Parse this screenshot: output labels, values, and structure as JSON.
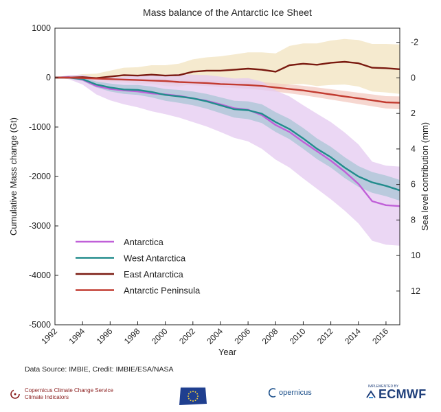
{
  "chart_data": {
    "type": "line",
    "title": "Mass balance of the Antarctic Ice Sheet",
    "xlabel": "Year",
    "ylabel": "Cumulative Mass change (Gt)",
    "y2label": "Sea level contribution (mm)",
    "xlim": [
      1992,
      2017
    ],
    "ylim": [
      -5000,
      1000
    ],
    "y2lim": [
      -2.8,
      13.9
    ],
    "x_ticks": [
      "1992",
      "1994",
      "1996",
      "1998",
      "2000",
      "2002",
      "2004",
      "2006",
      "2008",
      "2010",
      "2012",
      "2014",
      "2016"
    ],
    "y_ticks": [
      "1000",
      "0",
      "-1000",
      "-2000",
      "-3000",
      "-4000",
      "-5000"
    ],
    "y2_ticks": [
      "-2",
      "0",
      "2",
      "4",
      "6",
      "8",
      "10",
      "12"
    ],
    "grid": false,
    "legend_position": "lower-left",
    "x": [
      1992,
      1993,
      1994,
      1995,
      1996,
      1997,
      1998,
      1999,
      2000,
      2001,
      2002,
      2003,
      2004,
      2005,
      2006,
      2007,
      2008,
      2009,
      2010,
      2011,
      2012,
      2013,
      2014,
      2015,
      2016,
      2017
    ],
    "series": [
      {
        "name": "Antarctica",
        "color": "#c060d8",
        "band_color": "#e4c9f0",
        "values": [
          0,
          10,
          -40,
          -170,
          -230,
          -260,
          -280,
          -320,
          -340,
          -370,
          -420,
          -470,
          -540,
          -620,
          -650,
          -760,
          -960,
          -1100,
          -1300,
          -1490,
          -1680,
          -1900,
          -2150,
          -2500,
          -2580,
          -2600
        ],
        "uncertainty": [
          0,
          40,
          100,
          170,
          230,
          280,
          320,
          360,
          400,
          440,
          480,
          520,
          560,
          600,
          640,
          680,
          700,
          720,
          740,
          760,
          780,
          790,
          800,
          800,
          800,
          800
        ]
      },
      {
        "name": "West Antarctica",
        "color": "#218c8c",
        "band_color": "#a9c5d6",
        "values": [
          0,
          0,
          -30,
          -140,
          -200,
          -240,
          -250,
          -290,
          -350,
          -380,
          -420,
          -480,
          -560,
          -640,
          -660,
          -730,
          -900,
          -1040,
          -1230,
          -1440,
          -1610,
          -1820,
          -2000,
          -2120,
          -2190,
          -2280
        ],
        "uncertainty": [
          0,
          20,
          40,
          60,
          80,
          90,
          100,
          110,
          120,
          130,
          140,
          150,
          160,
          170,
          180,
          190,
          200,
          205,
          210,
          210,
          210,
          210,
          210,
          210,
          210,
          210
        ]
      },
      {
        "name": "East Antarctica",
        "color": "#7a1a10",
        "band_color": "#f2e3bf",
        "values": [
          0,
          0,
          10,
          -10,
          20,
          50,
          40,
          60,
          40,
          50,
          120,
          140,
          140,
          160,
          180,
          160,
          120,
          250,
          280,
          260,
          300,
          320,
          290,
          200,
          190,
          170
        ],
        "uncertainty": [
          0,
          30,
          60,
          90,
          120,
          150,
          170,
          190,
          210,
          230,
          250,
          270,
          290,
          310,
          330,
          350,
          370,
          390,
          410,
          430,
          450,
          460,
          470,
          480,
          490,
          500
        ]
      },
      {
        "name": "Antarctic Peninsula",
        "color": "#c23b30",
        "band_color": "#f3c9c0",
        "values": [
          0,
          0,
          -10,
          -20,
          -30,
          -40,
          -50,
          -60,
          -70,
          -90,
          -100,
          -110,
          -130,
          -140,
          -150,
          -170,
          -200,
          -230,
          -260,
          -300,
          -340,
          -380,
          -420,
          -460,
          -500,
          -510
        ],
        "uncertainty": [
          0,
          10,
          15,
          20,
          25,
          30,
          35,
          40,
          45,
          50,
          55,
          60,
          65,
          70,
          75,
          80,
          85,
          90,
          95,
          100,
          105,
          110,
          115,
          120,
          125,
          130
        ]
      }
    ]
  },
  "footer": {
    "source": "Data Source: IMBIE, Credit: IMBIE/ESA/NASA",
    "c3s_line1": "Copernicus Climate Change Service",
    "c3s_line2": "Climate Indicators",
    "copernicus": "opernicus",
    "ecmwf_small": "IMPLEMENTED BY",
    "ecmwf": "ECMWF"
  }
}
